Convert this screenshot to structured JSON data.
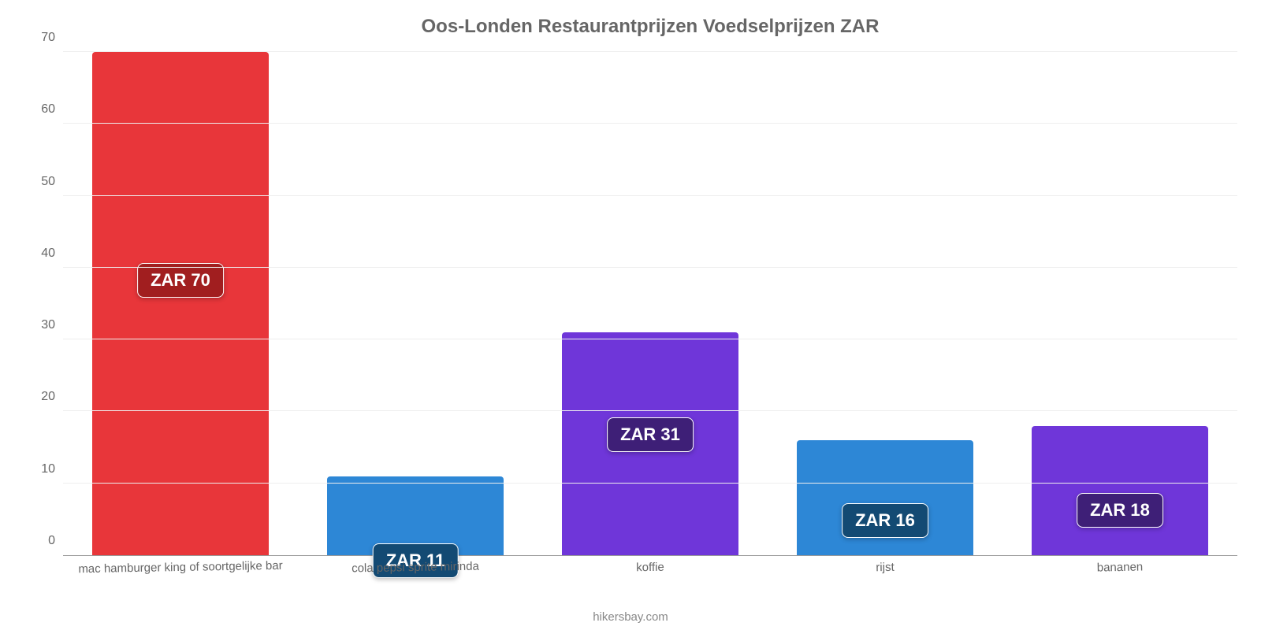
{
  "chart": {
    "type": "bar",
    "title": "Oos-Londen Restaurantprijzen Voedselprijzen ZAR",
    "title_color": "#666666",
    "title_fontsize": 24,
    "background_color": "#ffffff",
    "grid_color": "#eeeeee",
    "axis_color": "#999999",
    "tick_color": "#666666",
    "tick_fontsize": 16,
    "xlabel_fontsize": 15,
    "xlabel_rotation_deg": -1,
    "ylim": [
      0,
      70
    ],
    "yticks": [
      0,
      10,
      20,
      30,
      40,
      50,
      60,
      70
    ],
    "bar_width_pct": 75,
    "value_prefix": "ZAR ",
    "value_badge": {
      "fontsize": 22,
      "text_color": "#ffffff",
      "border_color": "#ffffff",
      "border_radius": 8,
      "padding": "8px 16px"
    },
    "categories": [
      "mac hamburger king of soortgelijke bar",
      "cola pepsi sprite mirinda",
      "koffie",
      "rijst",
      "bananen"
    ],
    "values": [
      70,
      11,
      31,
      16,
      18
    ],
    "bar_colors": [
      "#e8363a",
      "#2d87d6",
      "#6f36d9",
      "#2d87d6",
      "#6f36d9"
    ],
    "badge_colors": [
      "#a11e1f",
      "#134a73",
      "#3e1f77",
      "#134a73",
      "#3e1f77"
    ],
    "badge_offsets_pct": [
      42,
      85,
      38,
      55,
      52
    ],
    "credit": "hikersbay.com",
    "credit_color": "#888888",
    "credit_fontsize": 15
  }
}
